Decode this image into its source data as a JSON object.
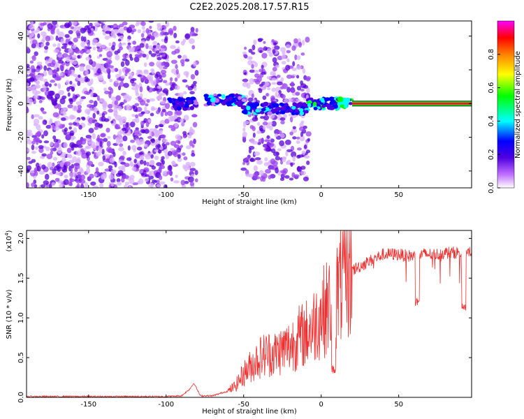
{
  "title": "C2E2.2025.208.17.57.R15",
  "chart_data": [
    {
      "type": "heatmap",
      "xlabel": "Height of straight line (km)",
      "ylabel": "Frequency (Hz)",
      "xlim": [
        -190,
        97
      ],
      "ylim": [
        -50,
        49
      ],
      "x_ticks": [
        -150,
        -100,
        -50,
        0,
        50
      ],
      "y_ticks": [
        -40,
        -20,
        0,
        20,
        40
      ],
      "colorbar": {
        "label": "Normalized spectral amplitude",
        "range": [
          0,
          1
        ],
        "ticks": [
          "0.0",
          "0.2",
          "0.4",
          "0.6",
          "0.8"
        ],
        "colors": [
          "#ffffff",
          "#c070ff",
          "#5000e0",
          "#0000ff",
          "#00ffff",
          "#00ff00",
          "#ffff00",
          "#ff8000",
          "#ff0000",
          "#ff00ff"
        ]
      },
      "regions": [
        {
          "x": [
            -190,
            -99
          ],
          "freq_spread": [
            -50,
            49
          ],
          "amplitude": 0.15
        },
        {
          "x": [
            -98,
            -80
          ],
          "freq_center": 0,
          "freq_spread": [
            -50,
            45
          ],
          "amplitude": 0.3
        },
        {
          "x": [
            -75,
            -50
          ],
          "freq_center": 2,
          "amplitude": 0.35
        },
        {
          "x": [
            -50,
            -8
          ],
          "freq_center": -3,
          "freq_spread": [
            -45,
            38
          ],
          "amplitude": 0.35
        },
        {
          "x": [
            -8,
            20
          ],
          "freq_center": 0,
          "amplitude": 0.45
        },
        {
          "x": [
            20,
            97
          ],
          "freq_center": 0,
          "amplitude": 0.95
        }
      ]
    },
    {
      "type": "line",
      "xlabel": "Height of straight line (km)",
      "ylabel": "SNR (10 * v/v)",
      "y_multiplier": "(x10",
      "y_multiplier_exp": "4",
      "xlim": [
        -190,
        97
      ],
      "ylim": [
        0,
        2.1
      ],
      "x_ticks": [
        -150,
        -100,
        -50,
        0,
        50
      ],
      "y_ticks": [
        "0.0",
        "0.5",
        "1.0",
        "1.5",
        "2.0"
      ],
      "color": "#ee3030",
      "x": [
        -190,
        -150,
        -100,
        -90,
        -85,
        -82,
        -78,
        -70,
        -60,
        -55,
        -50,
        -45,
        -40,
        -35,
        -30,
        -25,
        -20,
        -15,
        -10,
        -5,
        0,
        5,
        10,
        15,
        20,
        25,
        30,
        35,
        40,
        45,
        50,
        55,
        60,
        65,
        70,
        75,
        80,
        85,
        90,
        97
      ],
      "y": [
        0.01,
        0.01,
        0.01,
        0.02,
        0.1,
        0.18,
        0.02,
        0.02,
        0.08,
        0.15,
        0.3,
        0.4,
        0.5,
        0.55,
        0.55,
        0.6,
        0.65,
        0.75,
        0.8,
        0.9,
        1.05,
        1.15,
        1.3,
        1.5,
        1.6,
        1.65,
        1.7,
        1.75,
        1.8,
        1.8,
        1.8,
        1.78,
        1.78,
        1.8,
        1.8,
        1.8,
        1.82,
        1.82,
        1.83,
        1.85
      ],
      "dips": [
        {
          "x": 8,
          "y": 0.3
        },
        {
          "x": 62,
          "y": 1.15
        },
        {
          "x": 92,
          "y": 1.08
        }
      ]
    }
  ]
}
